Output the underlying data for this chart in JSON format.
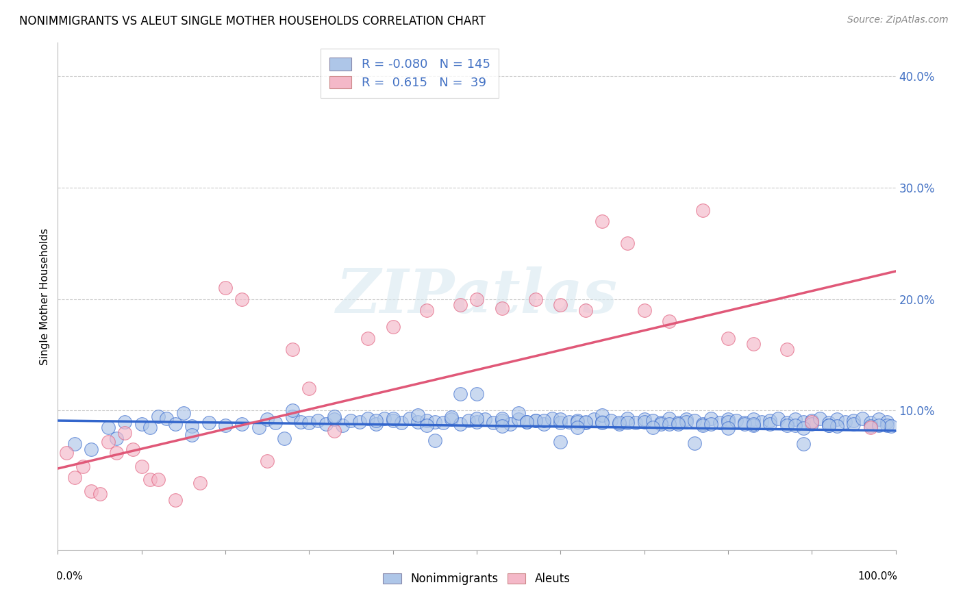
{
  "title": "NONIMMIGRANTS VS ALEUT SINGLE MOTHER HOUSEHOLDS CORRELATION CHART",
  "source": "Source: ZipAtlas.com",
  "ylabel": "Single Mother Households",
  "xlim": [
    0.0,
    1.0
  ],
  "ylim": [
    -0.025,
    0.43
  ],
  "blue_R": -0.08,
  "blue_N": 145,
  "pink_R": 0.615,
  "pink_N": 39,
  "blue_color": "#aec6e8",
  "pink_color": "#f4b8c8",
  "blue_line_color": "#3366cc",
  "pink_line_color": "#e05878",
  "blue_line_start_x": 0.0,
  "blue_line_start_y": 0.091,
  "blue_line_end_x": 1.0,
  "blue_line_end_y": 0.082,
  "pink_line_start_x": 0.0,
  "pink_line_start_y": 0.048,
  "pink_line_end_x": 1.0,
  "pink_line_end_y": 0.225,
  "blue_scatter_x": [
    0.02,
    0.04,
    0.06,
    0.07,
    0.08,
    0.1,
    0.11,
    0.12,
    0.13,
    0.14,
    0.15,
    0.16,
    0.18,
    0.2,
    0.22,
    0.24,
    0.25,
    0.26,
    0.28,
    0.29,
    0.3,
    0.31,
    0.32,
    0.33,
    0.34,
    0.35,
    0.36,
    0.37,
    0.38,
    0.39,
    0.4,
    0.41,
    0.42,
    0.43,
    0.44,
    0.45,
    0.46,
    0.47,
    0.48,
    0.49,
    0.5,
    0.5,
    0.51,
    0.52,
    0.53,
    0.54,
    0.55,
    0.55,
    0.56,
    0.57,
    0.58,
    0.59,
    0.6,
    0.6,
    0.61,
    0.62,
    0.63,
    0.64,
    0.65,
    0.65,
    0.66,
    0.67,
    0.68,
    0.69,
    0.7,
    0.7,
    0.71,
    0.72,
    0.73,
    0.74,
    0.75,
    0.75,
    0.76,
    0.77,
    0.78,
    0.79,
    0.8,
    0.8,
    0.81,
    0.82,
    0.83,
    0.84,
    0.85,
    0.85,
    0.86,
    0.87,
    0.88,
    0.89,
    0.9,
    0.9,
    0.91,
    0.92,
    0.93,
    0.94,
    0.95,
    0.95,
    0.96,
    0.97,
    0.98,
    0.99,
    0.99,
    0.995,
    0.28,
    0.33,
    0.4,
    0.48,
    0.53,
    0.57,
    0.62,
    0.67,
    0.72,
    0.77,
    0.82,
    0.87,
    0.92,
    0.97,
    0.43,
    0.5,
    0.58,
    0.63,
    0.68,
    0.73,
    0.78,
    0.83,
    0.88,
    0.93,
    0.38,
    0.47,
    0.56,
    0.65,
    0.74,
    0.83,
    0.92,
    0.98,
    0.44,
    0.53,
    0.62,
    0.71,
    0.8,
    0.89,
    0.16,
    0.27,
    0.45,
    0.6,
    0.76,
    0.89
  ],
  "blue_scatter_y": [
    0.07,
    0.065,
    0.085,
    0.075,
    0.09,
    0.088,
    0.085,
    0.095,
    0.093,
    0.088,
    0.098,
    0.086,
    0.089,
    0.087,
    0.088,
    0.085,
    0.092,
    0.089,
    0.095,
    0.09,
    0.089,
    0.091,
    0.088,
    0.092,
    0.087,
    0.091,
    0.09,
    0.093,
    0.088,
    0.093,
    0.091,
    0.089,
    0.093,
    0.09,
    0.091,
    0.09,
    0.089,
    0.092,
    0.088,
    0.091,
    0.09,
    0.115,
    0.092,
    0.089,
    0.091,
    0.088,
    0.092,
    0.098,
    0.09,
    0.091,
    0.088,
    0.093,
    0.089,
    0.092,
    0.09,
    0.091,
    0.089,
    0.092,
    0.09,
    0.096,
    0.091,
    0.088,
    0.093,
    0.089,
    0.092,
    0.09,
    0.091,
    0.089,
    0.093,
    0.089,
    0.092,
    0.09,
    0.091,
    0.088,
    0.093,
    0.089,
    0.092,
    0.09,
    0.091,
    0.089,
    0.092,
    0.09,
    0.091,
    0.088,
    0.093,
    0.089,
    0.092,
    0.09,
    0.091,
    0.088,
    0.093,
    0.089,
    0.092,
    0.09,
    0.091,
    0.088,
    0.093,
    0.089,
    0.092,
    0.09,
    0.087,
    0.086,
    0.1,
    0.095,
    0.093,
    0.115,
    0.093,
    0.091,
    0.09,
    0.089,
    0.088,
    0.087,
    0.088,
    0.087,
    0.087,
    0.086,
    0.096,
    0.093,
    0.091,
    0.09,
    0.089,
    0.088,
    0.088,
    0.087,
    0.087,
    0.086,
    0.091,
    0.094,
    0.09,
    0.089,
    0.088,
    0.088,
    0.087,
    0.087,
    0.087,
    0.086,
    0.085,
    0.085,
    0.084,
    0.084,
    0.078,
    0.075,
    0.073,
    0.072,
    0.071,
    0.07
  ],
  "pink_scatter_x": [
    0.01,
    0.02,
    0.03,
    0.04,
    0.05,
    0.06,
    0.07,
    0.08,
    0.09,
    0.1,
    0.11,
    0.12,
    0.14,
    0.17,
    0.2,
    0.22,
    0.25,
    0.28,
    0.3,
    0.33,
    0.37,
    0.4,
    0.44,
    0.48,
    0.5,
    0.53,
    0.57,
    0.6,
    0.63,
    0.65,
    0.68,
    0.7,
    0.73,
    0.77,
    0.8,
    0.83,
    0.87,
    0.9,
    0.97
  ],
  "pink_scatter_y": [
    0.062,
    0.04,
    0.05,
    0.028,
    0.025,
    0.072,
    0.062,
    0.08,
    0.065,
    0.05,
    0.038,
    0.038,
    0.02,
    0.035,
    0.21,
    0.2,
    0.055,
    0.155,
    0.12,
    0.082,
    0.165,
    0.175,
    0.19,
    0.195,
    0.2,
    0.192,
    0.2,
    0.195,
    0.19,
    0.27,
    0.25,
    0.19,
    0.18,
    0.28,
    0.165,
    0.16,
    0.155,
    0.09,
    0.085
  ],
  "watermark_text": "ZIPatlas",
  "title_fontsize": 12,
  "source_fontsize": 10,
  "ytick_fontsize": 12,
  "ylabel_fontsize": 11
}
